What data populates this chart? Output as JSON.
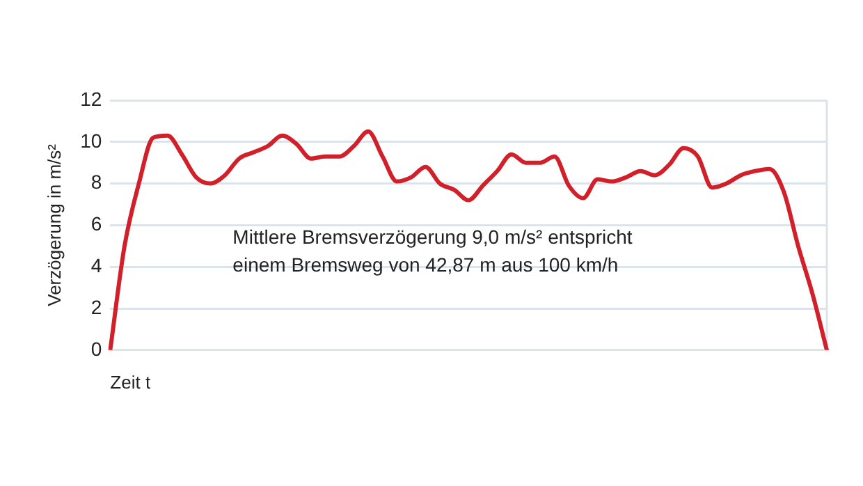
{
  "chart_data": {
    "type": "line",
    "ylabel": "Verzögerung in m/s²",
    "xlabel": "Zeit t",
    "categories": [
      null,
      null,
      null,
      null,
      null,
      null,
      null,
      null,
      null,
      null,
      null,
      null,
      null,
      null,
      null,
      null,
      null,
      null,
      null,
      null,
      null,
      null,
      null,
      null,
      null,
      null,
      null,
      null,
      null,
      null,
      null,
      null,
      null,
      null,
      null,
      null,
      null,
      null,
      null,
      null,
      null,
      null,
      null,
      null,
      null,
      null,
      null,
      null,
      null,
      null,
      null
    ],
    "series": [
      {
        "color": "#d2202a",
        "values": [
          0,
          5.0,
          8.0,
          10.2,
          10.3,
          9.4,
          8.3,
          8.0,
          8.4,
          9.2,
          9.5,
          9.8,
          10.3,
          9.9,
          9.2,
          9.3,
          9.3,
          9.8,
          10.5,
          9.3,
          8.1,
          8.3,
          8.8,
          8.0,
          7.7,
          7.2,
          7.9,
          8.6,
          9.4,
          9.0,
          9.0,
          9.3,
          7.9,
          7.3,
          8.2,
          8.1,
          8.3,
          8.6,
          8.4,
          8.9,
          9.7,
          9.3,
          7.8,
          8.0,
          8.4,
          8.6,
          8.7,
          7.6,
          5.0,
          2.7,
          0
        ]
      }
    ],
    "ylim": [
      0,
      12
    ],
    "yticks": [
      0,
      2,
      4,
      6,
      8,
      10,
      12
    ],
    "grid": "y",
    "legend": false,
    "marker": "none",
    "line_style": "solid",
    "annotations": [
      "Mittlere Bremsverzögerung 9,0 m/s² entspricht\neinem Bremsweg von 42,87 m aus 100 km/h"
    ]
  }
}
